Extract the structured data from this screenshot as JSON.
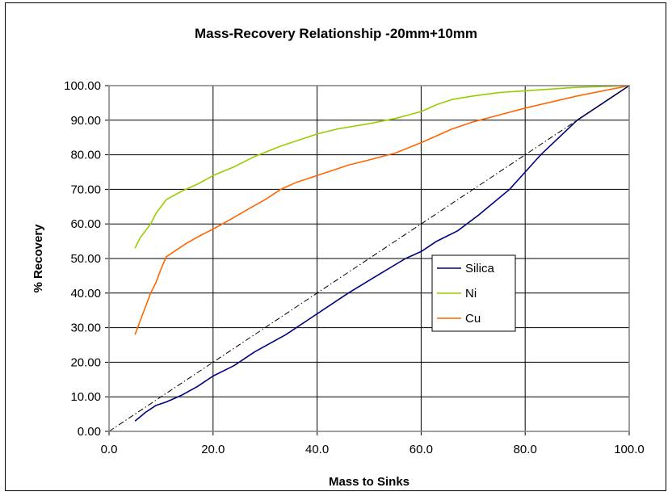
{
  "chart_data": {
    "type": "line",
    "title": "Mass-Recovery Relationship -20mm+10mm",
    "xlabel": "Mass to Sinks",
    "ylabel": "% Recovery",
    "xlim": [
      0,
      100
    ],
    "ylim": [
      0,
      100
    ],
    "x_ticks": [
      "0.0",
      "20.0",
      "40.0",
      "60.0",
      "80.0",
      "100.0"
    ],
    "y_ticks": [
      "0.00",
      "10.00",
      "20.00",
      "30.00",
      "40.00",
      "50.00",
      "60.00",
      "70.00",
      "80.00",
      "90.00",
      "100.00"
    ],
    "grid": true,
    "legend_position": "right",
    "series": [
      {
        "name": "Silica",
        "color": "#000080",
        "points": [
          [
            5,
            3
          ],
          [
            7,
            5.5
          ],
          [
            9,
            7.5
          ],
          [
            11,
            8.5
          ],
          [
            14,
            10.5
          ],
          [
            17,
            13
          ],
          [
            20,
            16
          ],
          [
            24,
            19
          ],
          [
            28,
            23
          ],
          [
            34,
            28
          ],
          [
            40,
            34
          ],
          [
            46,
            40
          ],
          [
            52,
            45.5
          ],
          [
            57,
            50
          ],
          [
            60,
            52
          ],
          [
            63,
            55
          ],
          [
            67,
            58
          ],
          [
            71,
            62.5
          ],
          [
            77,
            70
          ],
          [
            83,
            80
          ],
          [
            90,
            90
          ],
          [
            100,
            100
          ]
        ]
      },
      {
        "name": "Ni",
        "color": "#99CC00",
        "points": [
          [
            5,
            53
          ],
          [
            6,
            56
          ],
          [
            8,
            60
          ],
          [
            9,
            63
          ],
          [
            11,
            67
          ],
          [
            14,
            69.5
          ],
          [
            17,
            71.5
          ],
          [
            20,
            74
          ],
          [
            24,
            76.5
          ],
          [
            28,
            79.5
          ],
          [
            33,
            82.5
          ],
          [
            36,
            84
          ],
          [
            40,
            86
          ],
          [
            44,
            87.5
          ],
          [
            50,
            89
          ],
          [
            55,
            90.5
          ],
          [
            60,
            92.5
          ],
          [
            63,
            94.5
          ],
          [
            66,
            96
          ],
          [
            70,
            97
          ],
          [
            75,
            98
          ],
          [
            80,
            98.5
          ],
          [
            90,
            99.5
          ],
          [
            100,
            100
          ]
        ]
      },
      {
        "name": "Cu",
        "color": "#FF6600",
        "points": [
          [
            5,
            28
          ],
          [
            6,
            32
          ],
          [
            7,
            36
          ],
          [
            8,
            40
          ],
          [
            9,
            43
          ],
          [
            10,
            47
          ],
          [
            11,
            50.5
          ],
          [
            13,
            52.5
          ],
          [
            15,
            54.5
          ],
          [
            18,
            57
          ],
          [
            20,
            58.5
          ],
          [
            23,
            61
          ],
          [
            27,
            64.5
          ],
          [
            30,
            67
          ],
          [
            33,
            70
          ],
          [
            36,
            72
          ],
          [
            40,
            74
          ],
          [
            43,
            75.5
          ],
          [
            46,
            77
          ],
          [
            50,
            78.5
          ],
          [
            55,
            80.5
          ],
          [
            60,
            83.5
          ],
          [
            63,
            85.5
          ],
          [
            66,
            87.5
          ],
          [
            70,
            89.5
          ],
          [
            75,
            91.5
          ],
          [
            80,
            93.5
          ],
          [
            90,
            97
          ],
          [
            100,
            100
          ]
        ]
      },
      {
        "name": "",
        "color": "#000000",
        "style": "dash-dot",
        "points": [
          [
            0,
            0
          ],
          [
            100,
            100
          ]
        ]
      }
    ]
  }
}
